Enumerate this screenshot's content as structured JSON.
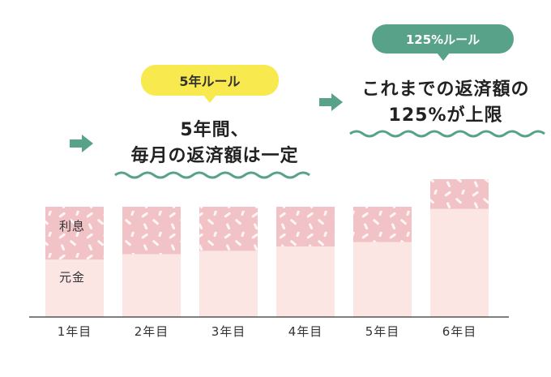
{
  "rule_left": {
    "bubble": "5年ルール",
    "line1": "5年間、",
    "line2": "毎月の返済額は一定"
  },
  "rule_right": {
    "bubble": "125%ルール",
    "line1": "これまでの返済額の",
    "line2": "125%が上限"
  },
  "colors": {
    "yellow": "#f7e94e",
    "green": "#58a28a",
    "interest": "#f2c3c6",
    "principal": "#fce6e4",
    "axis": "#555555"
  },
  "chart_data": {
    "type": "bar",
    "categories": [
      "1年目",
      "2年目",
      "3年目",
      "4年目",
      "5年目",
      "6年目"
    ],
    "series": [
      {
        "name": "元金",
        "values": [
          0.52,
          0.57,
          0.6,
          0.64,
          0.68,
          0.98
        ]
      },
      {
        "name": "利息",
        "values": [
          0.48,
          0.43,
          0.4,
          0.36,
          0.32,
          0.27
        ]
      }
    ],
    "stacked": true,
    "ylim": [
      0,
      1.25
    ],
    "segment_labels": {
      "interest": "利息",
      "principal": "元金"
    }
  }
}
